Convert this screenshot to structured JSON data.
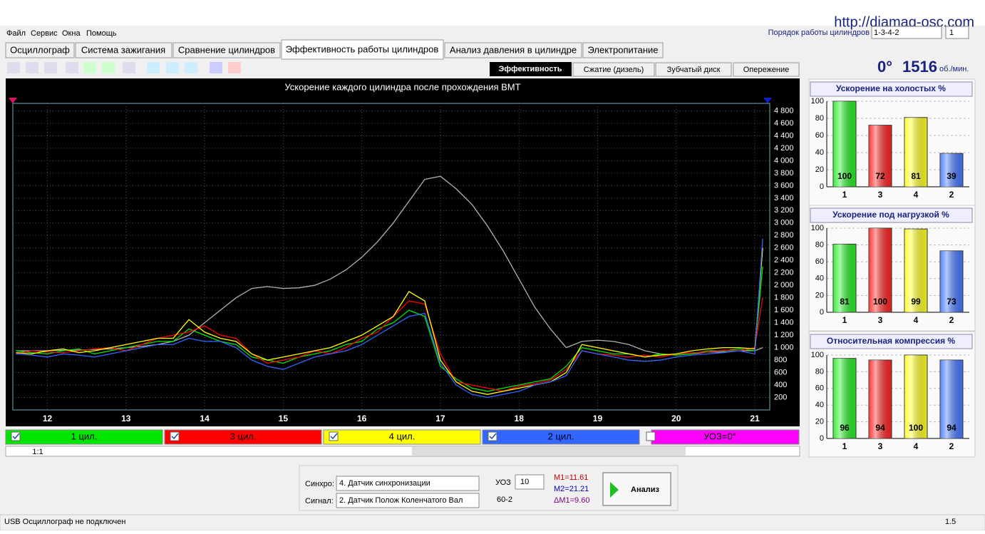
{
  "ui": {
    "url": "http://diamag-osc.com",
    "menu": [
      "Файл",
      "Сервис",
      "Окна",
      "Помощь"
    ],
    "firing_order_label": "Порядок работы цилиндров",
    "firing_order": "1-3-4-2",
    "cylinder": "1",
    "tabs": [
      "Осциллограф",
      "Система зажигания",
      "Сравнение цилиндров",
      "Эффективность работы цилиндров",
      "Анализ давления в цилиндре",
      "Электропитание"
    ],
    "subtabs": [
      "Эффективность",
      "Сжатие (дизель)",
      "Зубчатый диск",
      "Опережение"
    ],
    "angle": "0°",
    "rpm": "1516",
    "rpm_unit": "об./мин.",
    "uoz_chip": "УОЗ=0°",
    "zoom": "1:1",
    "sync_label": "Синхро:",
    "sync_value": "4.  Датчик синхронизации",
    "signal_label": "Сигнал:",
    "signal_value": "2.  Датчик Полож Коленчатого Вал",
    "uoz_label": "УОЗ",
    "uoz_value": "10",
    "wheel": "60-2",
    "m1": "M1=11.61",
    "m2": "M2=21.21",
    "dm1": "ΔM1=9.60",
    "analyze": "Анализ",
    "status": "USB Осциллограф не подключен",
    "version": "1.5"
  },
  "chart_data": [
    {
      "type": "line",
      "title": "Ускорение каждого цилиндра после прохождения ВМТ",
      "grid": true,
      "x": [
        11.6,
        11.8,
        12.0,
        12.2,
        12.4,
        12.6,
        12.8,
        13.0,
        13.2,
        13.4,
        13.6,
        13.8,
        14.0,
        14.2,
        14.4,
        14.6,
        14.8,
        15.0,
        15.2,
        15.4,
        15.6,
        15.8,
        16.0,
        16.2,
        16.4,
        16.6,
        16.8,
        17.0,
        17.2,
        17.4,
        17.6,
        17.8,
        18.0,
        18.2,
        18.4,
        18.6,
        18.8,
        19.0,
        19.2,
        19.4,
        19.6,
        19.8,
        20.0,
        20.2,
        20.4,
        20.6,
        20.8,
        21.0,
        21.1
      ],
      "xlim": [
        11.56,
        21.19
      ],
      "xticks": [
        12,
        13,
        14,
        15,
        16,
        17,
        18,
        19,
        20,
        21
      ],
      "ylim": [
        0,
        4920
      ],
      "yticks": [
        200,
        400,
        600,
        800,
        {
          "value": 1000,
          "label": "1 000"
        },
        {
          "value": 1200,
          "label": "1 200"
        },
        {
          "value": 1400,
          "label": "1 400"
        },
        {
          "value": 1600,
          "label": "1 600"
        },
        {
          "value": 1800,
          "label": "1 800"
        },
        {
          "value": 2000,
          "label": "2 000"
        },
        {
          "value": 2200,
          "label": "2 200"
        },
        {
          "value": 2400,
          "label": "2 400"
        },
        {
          "value": 2600,
          "label": "2 600"
        },
        {
          "value": 2800,
          "label": "2 800"
        },
        {
          "value": 3000,
          "label": "3 000"
        },
        {
          "value": 3200,
          "label": "3 200"
        },
        {
          "value": 3400,
          "label": "3 400"
        },
        {
          "value": 3600,
          "label": "3 600"
        },
        {
          "value": 3800,
          "label": "3 800"
        },
        {
          "value": 4000,
          "label": "4 000"
        },
        {
          "value": 4200,
          "label": "4 200"
        },
        {
          "value": 4400,
          "label": "4 400"
        },
        {
          "value": 4600,
          "label": "4 600"
        },
        {
          "value": 4800,
          "label": "4 800"
        }
      ],
      "series": [
        {
          "color": "#b0b0b0",
          "values": [
            950,
            950,
            950,
            960,
            960,
            970,
            980,
            1000,
            1020,
            1050,
            1100,
            1200,
            1400,
            1600,
            1800,
            1950,
            1980,
            1950,
            1960,
            2000,
            2100,
            2250,
            2450,
            2700,
            3000,
            3350,
            3700,
            3750,
            3550,
            3300,
            2950,
            2550,
            2100,
            1650,
            1300,
            1000,
            1100,
            1120,
            1100,
            1050,
            950,
            900,
            880,
            900,
            930,
            930,
            950,
            950,
            1000
          ]
        },
        {
          "name": "1 цил.",
          "color": "#00e600",
          "values": [
            950,
            920,
            900,
            950,
            980,
            900,
            950,
            1000,
            1050,
            1100,
            1100,
            1300,
            1200,
            1100,
            1050,
            850,
            800,
            750,
            850,
            900,
            950,
            1050,
            1100,
            1300,
            1400,
            1600,
            1500,
            700,
            500,
            350,
            300,
            350,
            400,
            450,
            500,
            700,
            1000,
            950,
            900,
            900,
            850,
            900,
            880,
            900,
            950,
            950,
            980,
            950,
            2300
          ]
        },
        {
          "name": "3 цил.",
          "color": "#ff0000",
          "values": [
            900,
            950,
            930,
            920,
            950,
            980,
            1000,
            950,
            1050,
            1150,
            1200,
            1250,
            1350,
            1200,
            1150,
            900,
            750,
            800,
            850,
            950,
            900,
            1000,
            1150,
            1250,
            1500,
            1750,
            1700,
            900,
            450,
            400,
            350,
            300,
            380,
            420,
            480,
            650,
            950,
            900,
            880,
            850,
            880,
            850,
            900,
            920,
            930,
            960,
            950,
            1000,
            1800
          ]
        },
        {
          "name": "4 цил.",
          "color": "#ffff00",
          "values": [
            920,
            900,
            950,
            980,
            920,
            950,
            1000,
            1050,
            1100,
            1150,
            1150,
            1450,
            1250,
            1150,
            1100,
            900,
            800,
            850,
            900,
            950,
            1000,
            1100,
            1200,
            1350,
            1500,
            1900,
            1750,
            800,
            450,
            300,
            250,
            300,
            350,
            400,
            450,
            600,
            1050,
            1000,
            950,
            900,
            850,
            880,
            900,
            950,
            980,
            1000,
            1000,
            980,
            2600
          ]
        },
        {
          "name": "2 цил.",
          "color": "#3366ff",
          "values": [
            900,
            880,
            850,
            900,
            880,
            850,
            900,
            950,
            1000,
            1050,
            1050,
            1150,
            1100,
            1100,
            1000,
            800,
            700,
            650,
            750,
            850,
            900,
            950,
            1050,
            1200,
            1350,
            1500,
            1550,
            750,
            400,
            250,
            200,
            250,
            300,
            400,
            450,
            550,
            950,
            900,
            850,
            800,
            780,
            800,
            850,
            880,
            900,
            920,
            950,
            900,
            2750
          ]
        }
      ]
    },
    {
      "type": "bar",
      "title": "Ускорение на холостых %",
      "categories": [
        "1",
        "3",
        "4",
        "2"
      ],
      "values": [
        100,
        72,
        81,
        39
      ],
      "colors": [
        "#22ee22",
        "#ff2222",
        "#ffff22",
        "#4477ff"
      ],
      "ylim": [
        0,
        100
      ],
      "yticks": [
        0,
        20,
        40,
        60,
        80,
        100
      ]
    },
    {
      "type": "bar",
      "title": "Ускорение под нагрузкой %",
      "categories": [
        "1",
        "3",
        "4",
        "2"
      ],
      "values": [
        81,
        100,
        99,
        73
      ],
      "colors": [
        "#22ee22",
        "#ff2222",
        "#ffff22",
        "#4477ff"
      ],
      "ylim": [
        0,
        100
      ],
      "yticks": [
        0,
        20,
        40,
        60,
        80,
        100
      ]
    },
    {
      "type": "bar",
      "title": "Относительная компрессия %",
      "categories": [
        "1",
        "3",
        "4",
        "2"
      ],
      "values": [
        96,
        94,
        100,
        94
      ],
      "colors": [
        "#22ee22",
        "#ff2222",
        "#ffff22",
        "#4477ff"
      ],
      "ylim": [
        0,
        100
      ],
      "yticks": [
        0,
        20,
        40,
        60,
        80,
        100
      ]
    }
  ]
}
